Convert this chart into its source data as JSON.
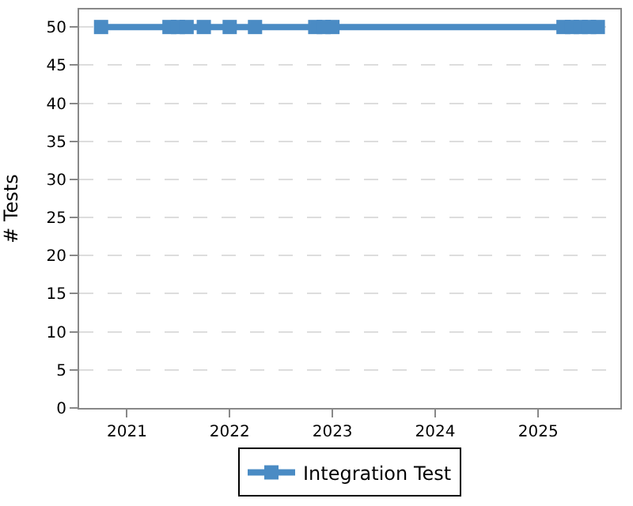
{
  "chart_data": {
    "type": "line",
    "ylabel": "# Tests",
    "x": [
      "2020-10-01",
      "2021-06-01",
      "2021-07-01",
      "2021-08-01",
      "2021-10-01",
      "2022-01-01",
      "2022-04-01",
      "2022-11-01",
      "2022-12-01",
      "2023-01-01",
      "2025-04-01",
      "2025-05-01",
      "2025-06-01",
      "2025-07-01",
      "2025-08-01"
    ],
    "series": [
      {
        "name": "Integration Test",
        "color": "#4a8bc4",
        "values": [
          50,
          50,
          50,
          50,
          50,
          50,
          50,
          50,
          50,
          50,
          50,
          50,
          50,
          50,
          50
        ]
      }
    ],
    "xlim": [
      "2020-07-15",
      "2025-10-20"
    ],
    "xticks": [
      {
        "value": "2021-01-01",
        "label": "2021"
      },
      {
        "value": "2022-01-01",
        "label": "2022"
      },
      {
        "value": "2023-01-01",
        "label": "2023"
      },
      {
        "value": "2024-01-01",
        "label": "2024"
      },
      {
        "value": "2025-01-01",
        "label": "2025"
      }
    ],
    "ylim": [
      0,
      52.3
    ],
    "yticks": [
      0,
      5,
      10,
      15,
      20,
      25,
      30,
      35,
      40,
      45,
      50
    ],
    "grid": "y",
    "legend": "bottom",
    "marker": "square",
    "line_style": "solid"
  }
}
